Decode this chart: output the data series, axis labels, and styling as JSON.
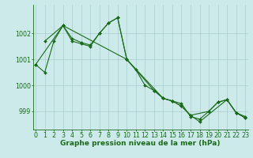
{
  "line1": {
    "x": [
      0,
      1,
      2,
      3,
      4,
      5,
      6,
      7,
      8,
      9,
      10,
      11,
      12,
      13,
      14,
      15,
      16,
      17,
      18,
      19,
      20,
      21,
      22,
      23
    ],
    "y": [
      1000.8,
      1000.5,
      1001.7,
      1002.3,
      1001.7,
      1001.6,
      1001.5,
      1002.0,
      1002.4,
      1002.6,
      1001.0,
      1000.6,
      1000.0,
      999.8,
      999.5,
      999.4,
      999.3,
      998.8,
      998.7,
      999.0,
      999.35,
      999.45,
      998.95,
      998.8
    ]
  },
  "line2": {
    "x": [
      1,
      3,
      4,
      5,
      6,
      7,
      8,
      9,
      10,
      13,
      14,
      15,
      16,
      17,
      18,
      21,
      22,
      23
    ],
    "y": [
      1001.7,
      1002.3,
      1001.8,
      1001.65,
      1001.55,
      1002.0,
      1002.4,
      1002.6,
      1001.0,
      999.8,
      999.5,
      999.4,
      999.2,
      998.85,
      998.6,
      999.45,
      998.95,
      998.75
    ]
  },
  "line3": {
    "x": [
      0,
      3,
      10,
      14,
      15,
      16,
      17,
      19,
      20,
      21,
      22,
      23
    ],
    "y": [
      1000.8,
      1002.3,
      1001.0,
      999.5,
      999.4,
      999.2,
      998.85,
      999.0,
      999.35,
      999.45,
      998.95,
      998.75
    ]
  },
  "ylim": [
    998.3,
    1003.1
  ],
  "xlim": [
    -0.3,
    23.3
  ],
  "yticks": [
    999,
    1000,
    1001,
    1002
  ],
  "xticks": [
    0,
    1,
    2,
    3,
    4,
    5,
    6,
    7,
    8,
    9,
    10,
    11,
    12,
    13,
    14,
    15,
    16,
    17,
    18,
    19,
    20,
    21,
    22,
    23
  ],
  "xlabel": "Graphe pression niveau de la mer (hPa)",
  "bg_color": "#cceaea",
  "line_color": "#1a6b1a",
  "grid_color": "#aacccc",
  "tick_color": "#1a6b1a",
  "label_color": "#1a6b1a",
  "xlabel_fontsize": 6.5,
  "tick_fontsize": 5.8
}
